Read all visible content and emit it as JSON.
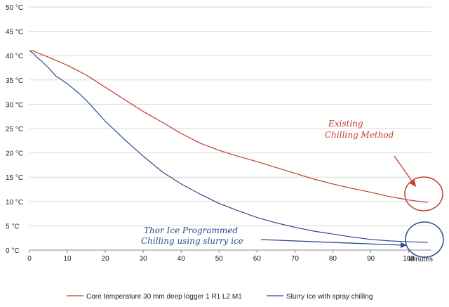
{
  "chart_data": {
    "type": "line",
    "x_unit": "Minutes",
    "xlim": [
      0,
      106
    ],
    "ylim": [
      0,
      50
    ],
    "x_ticks": [
      0,
      10,
      20,
      30,
      40,
      50,
      60,
      70,
      80,
      90,
      100
    ],
    "y_ticks": [
      0,
      5,
      10,
      15,
      20,
      25,
      30,
      35,
      40,
      45,
      50
    ],
    "y_tick_labels": [
      "0 °C",
      "5 °C",
      "10 °C",
      "15 °C",
      "20 °C",
      "25 °C",
      "30 °C",
      "35 °C",
      "40 °C",
      "45 °C",
      "50 °C"
    ],
    "grid": "horizontal",
    "legend_position": "bottom",
    "series": [
      {
        "name": "Core temperature 30 mm deep logger 1 R1 L2 M1",
        "color": "#c0392b",
        "x": [
          0,
          1,
          2,
          3,
          5,
          7,
          10,
          13,
          15,
          20,
          25,
          30,
          35,
          40,
          45,
          50,
          55,
          60,
          65,
          70,
          75,
          80,
          85,
          90,
          95,
          100,
          105
        ],
        "y": [
          41,
          41,
          40.6,
          40.3,
          39.7,
          39,
          38,
          36.8,
          36,
          33.5,
          31,
          28.5,
          26.3,
          24,
          22,
          20.5,
          19.3,
          18.2,
          17,
          15.8,
          14.6,
          13.6,
          12.7,
          11.9,
          11,
          10.3,
          9.8
        ]
      },
      {
        "name": "Slurry Ice with spray chilling",
        "color": "#2c4a8a",
        "x": [
          0,
          1,
          2,
          3,
          5,
          7,
          10,
          13,
          15,
          20,
          25,
          30,
          35,
          40,
          45,
          50,
          55,
          60,
          65,
          70,
          75,
          80,
          85,
          90,
          95,
          100,
          105
        ],
        "y": [
          41,
          40.5,
          39.6,
          39,
          37.5,
          35.8,
          34.2,
          32.3,
          30.8,
          26.5,
          22.8,
          19.3,
          16.1,
          13.6,
          11.5,
          9.6,
          8.1,
          6.7,
          5.6,
          4.7,
          3.9,
          3.3,
          2.7,
          2.2,
          1.9,
          1.7,
          1.6
        ]
      }
    ],
    "annotations": [
      {
        "text_lines": [
          "Existing",
          "Chilling Method"
        ],
        "color": "#c0392b"
      },
      {
        "text_lines": [
          "Thor Ice Programmed",
          "Chilling using slurry  ice"
        ],
        "color": "#2c4a8a"
      }
    ]
  }
}
